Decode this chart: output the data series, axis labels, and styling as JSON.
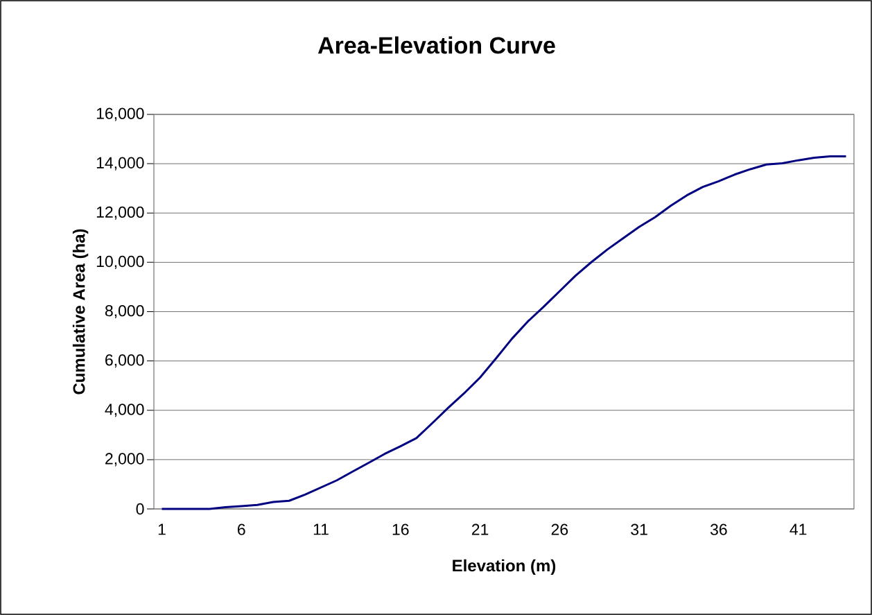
{
  "chart_data": {
    "type": "line",
    "title": "Area-Elevation Curve",
    "xlabel": "Elevation (m)",
    "ylabel": "Cumulative Area (ha)",
    "categories": [
      "1",
      null,
      null,
      null,
      null,
      "6",
      null,
      null,
      null,
      null,
      "11",
      null,
      null,
      null,
      null,
      "16",
      null,
      null,
      null,
      null,
      "21",
      null,
      null,
      null,
      null,
      "26",
      null,
      null,
      null,
      null,
      "31",
      null,
      null,
      null,
      null,
      "36",
      null,
      null,
      null,
      null,
      "41",
      null,
      null,
      null
    ],
    "values": [
      0,
      0,
      0,
      0,
      70,
      110,
      160,
      280,
      330,
      580,
      870,
      1160,
      1520,
      1870,
      2230,
      2540,
      2870,
      3480,
      4100,
      4690,
      5330,
      6100,
      6900,
      7600,
      8200,
      8830,
      9460,
      10010,
      10520,
      10980,
      11440,
      11830,
      12300,
      12720,
      13060,
      13290,
      13560,
      13780,
      13970,
      14020,
      14140,
      14240,
      14300,
      14300
    ],
    "color": "#000080",
    "ylim": [
      0,
      16000
    ],
    "yticks": [
      {
        "value": 0,
        "label": "0"
      },
      {
        "value": 2000,
        "label": "2,000"
      },
      {
        "value": 4000,
        "label": "4,000"
      },
      {
        "value": 6000,
        "label": "6,000"
      },
      {
        "value": 8000,
        "label": "8,000"
      },
      {
        "value": 10000,
        "label": "10,000"
      },
      {
        "value": 12000,
        "label": "12,000"
      },
      {
        "value": 14000,
        "label": "14,000"
      },
      {
        "value": 16000,
        "label": "16,000"
      }
    ],
    "grid": "y",
    "marker": "none",
    "line_style": "solid"
  }
}
